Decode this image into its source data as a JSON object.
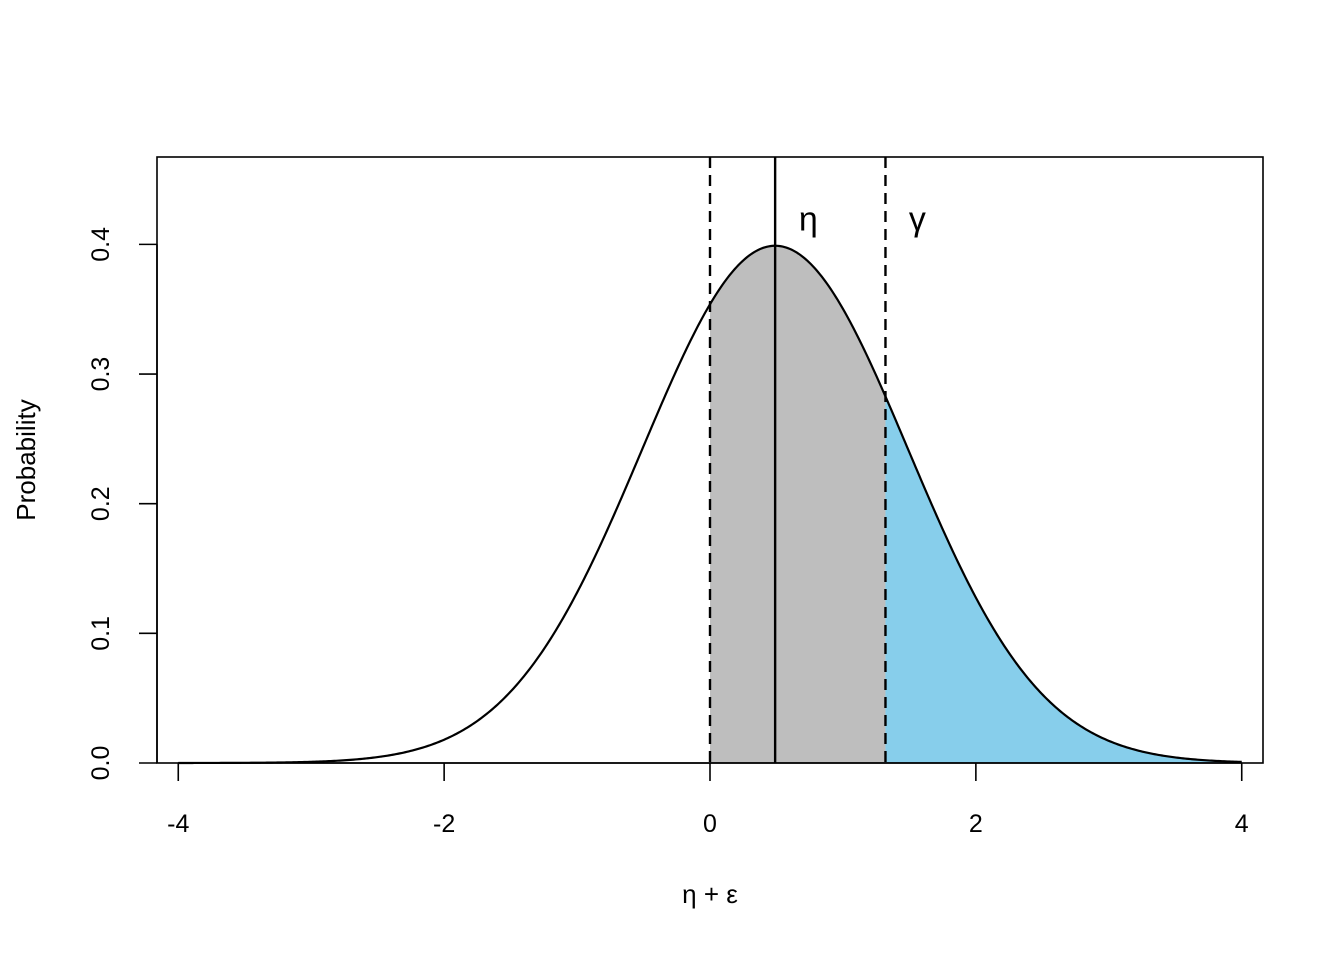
{
  "chart_data": {
    "type": "area",
    "title": "",
    "xlabel": "η + ε",
    "ylabel": "Probability",
    "xlim": [
      -4.16,
      4.16
    ],
    "ylim": [
      0,
      0.4674
    ],
    "xticks": [
      "-4",
      "-2",
      "0",
      "2",
      "4"
    ],
    "yticks": [
      "0.0",
      "0.1",
      "0.2",
      "0.3",
      "0.4"
    ],
    "grid": false,
    "series": [
      {
        "distribution": "normal",
        "mean": 0.49,
        "sd": 1.0,
        "x_range": [
          -4,
          4
        ]
      }
    ],
    "shaded_regions": [
      {
        "from": 0.0,
        "to": 1.32,
        "color": "#bebebe"
      },
      {
        "from": 1.32,
        "to": 4.0,
        "color": "#87ceeb"
      }
    ],
    "vlines": [
      {
        "x": 0.0,
        "style": "dashed"
      },
      {
        "x": 0.49,
        "style": "solid"
      },
      {
        "x": 1.32,
        "style": "dashed"
      }
    ],
    "annotations": [
      {
        "text": "η",
        "x": 0.74,
        "y": 0.42
      },
      {
        "text": "γ",
        "x": 1.56,
        "y": 0.42
      }
    ]
  }
}
